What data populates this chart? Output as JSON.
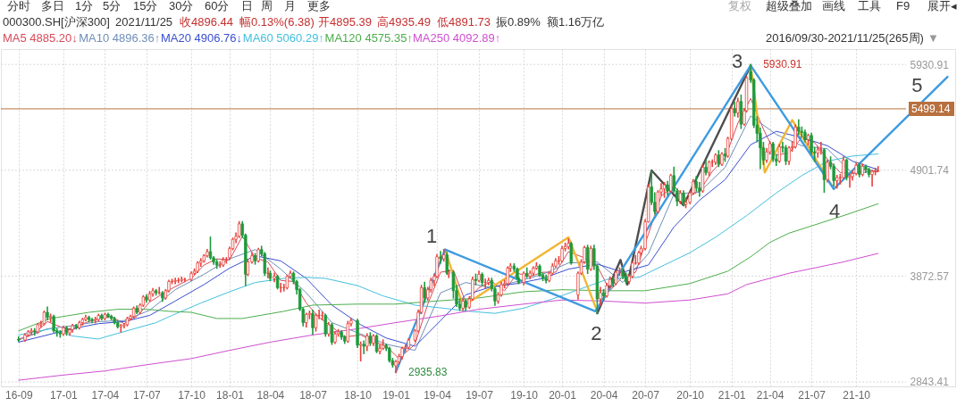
{
  "chart_data": {
    "type": "candlestick",
    "title": "000300.SH[沪深300]",
    "annotations": [
      "分时",
      "多日",
      "1分",
      "5分",
      "15分",
      "30分",
      "60分",
      "日",
      "周",
      "月",
      "更多",
      "复权",
      "超级叠加",
      "画线",
      "工具",
      "F9",
      "展开",
      "◂",
      "2021/11/25",
      "收4896.44",
      "幅0.13%(6.38)",
      "开4895.39",
      "高4935.49",
      "低4891.73",
      "振0.89%",
      "额1.16万亿",
      "2016/09/30-2021/11/25(265周)",
      "▼",
      {
        "text": "1",
        "x": "2019-04-22",
        "y": 4130
      },
      {
        "text": "2",
        "x": "2020-03-16",
        "y": 3530
      },
      {
        "text": "3",
        "x": "2021-02-19",
        "y": 5920
      },
      {
        "text": "4",
        "x": "2021-08-20",
        "y": 4720
      },
      {
        "text": "5",
        "x": "2022-04-26",
        "y": 5810
      },
      {
        "text": "5930.91",
        "x": "2021-02-19",
        "y": 5930.91
      },
      {
        "text": "2935.83",
        "x": "2019-01-04",
        "y": 2935.83
      }
    ],
    "x": [
      "2016-09-30",
      "2016-10-14",
      "2016-10-21",
      "2016-10-28",
      "2016-11-04",
      "2016-11-11",
      "2016-11-18",
      "2016-11-25",
      "2016-12-02",
      "2016-12-09",
      "2016-12-16",
      "2016-12-23",
      "2016-12-30",
      "2017-01-06",
      "2017-01-13",
      "2017-01-20",
      "2017-01-26",
      "2017-02-03",
      "2017-02-10",
      "2017-02-17",
      "2017-02-24",
      "2017-03-03",
      "2017-03-10",
      "2017-03-17",
      "2017-03-24",
      "2017-03-31",
      "2017-04-07",
      "2017-04-14",
      "2017-04-21",
      "2017-04-28",
      "2017-05-05",
      "2017-05-12",
      "2017-05-19",
      "2017-05-26",
      "2017-06-02",
      "2017-06-09",
      "2017-06-16",
      "2017-06-23",
      "2017-06-30",
      "2017-07-07",
      "2017-07-14",
      "2017-07-21",
      "2017-07-28",
      "2017-08-04",
      "2017-08-11",
      "2017-08-18",
      "2017-08-25",
      "2017-09-01",
      "2017-09-08",
      "2017-09-15",
      "2017-09-22",
      "2017-09-29",
      "2017-10-13",
      "2017-10-20",
      "2017-10-27",
      "2017-11-03",
      "2017-11-10",
      "2017-11-17",
      "2017-11-24",
      "2017-12-01",
      "2017-12-08",
      "2017-12-15",
      "2017-12-22",
      "2017-12-29",
      "2018-01-05",
      "2018-01-12",
      "2018-01-19",
      "2018-01-26",
      "2018-02-02",
      "2018-02-09",
      "2018-02-14",
      "2018-02-23",
      "2018-03-02",
      "2018-03-09",
      "2018-03-16",
      "2018-03-23",
      "2018-03-30",
      "2018-04-04",
      "2018-04-13",
      "2018-04-20",
      "2018-04-27",
      "2018-05-04",
      "2018-05-11",
      "2018-05-18",
      "2018-05-25",
      "2018-06-01",
      "2018-06-08",
      "2018-06-15",
      "2018-06-22",
      "2018-06-29",
      "2018-07-06",
      "2018-07-13",
      "2018-07-20",
      "2018-07-27",
      "2018-08-03",
      "2018-08-10",
      "2018-08-17",
      "2018-08-24",
      "2018-08-31",
      "2018-09-07",
      "2018-09-14",
      "2018-09-21",
      "2018-09-28",
      "2018-10-12",
      "2018-10-19",
      "2018-10-26",
      "2018-11-02",
      "2018-11-09",
      "2018-11-16",
      "2018-11-23",
      "2018-11-30",
      "2018-12-07",
      "2018-12-14",
      "2018-12-21",
      "2018-12-28",
      "2019-01-04",
      "2019-01-11",
      "2019-01-18",
      "2019-01-25",
      "2019-02-01",
      "2019-02-15",
      "2019-02-22",
      "2019-03-01",
      "2019-03-08",
      "2019-03-15",
      "2019-03-22",
      "2019-03-29",
      "2019-04-04",
      "2019-04-12",
      "2019-04-19",
      "2019-04-26",
      "2019-04-30",
      "2019-05-10",
      "2019-05-17",
      "2019-05-24",
      "2019-05-31",
      "2019-06-06",
      "2019-06-14",
      "2019-06-21",
      "2019-06-28",
      "2019-07-05",
      "2019-07-12",
      "2019-07-19",
      "2019-07-26",
      "2019-08-02",
      "2019-08-09",
      "2019-08-16",
      "2019-08-23",
      "2019-08-30",
      "2019-09-06",
      "2019-09-12",
      "2019-09-20",
      "2019-09-27",
      "2019-09-30",
      "2019-10-11",
      "2019-10-18",
      "2019-10-25",
      "2019-11-01",
      "2019-11-08",
      "2019-11-15",
      "2019-11-22",
      "2019-11-29",
      "2019-12-06",
      "2019-12-13",
      "2019-12-20",
      "2019-12-27",
      "2020-01-03",
      "2020-01-10",
      "2020-01-17",
      "2020-01-23",
      "2020-02-07",
      "2020-02-14",
      "2020-02-21",
      "2020-02-28",
      "2020-03-06",
      "2020-03-13",
      "2020-03-20",
      "2020-03-27",
      "2020-04-03",
      "2020-04-10",
      "2020-04-17",
      "2020-04-24",
      "2020-04-30",
      "2020-05-08",
      "2020-05-15",
      "2020-05-22",
      "2020-05-29",
      "2020-06-05",
      "2020-06-12",
      "2020-06-19",
      "2020-06-24",
      "2020-07-03",
      "2020-07-10",
      "2020-07-17",
      "2020-07-24",
      "2020-07-31",
      "2020-08-07",
      "2020-08-14",
      "2020-08-21",
      "2020-08-28",
      "2020-09-04",
      "2020-09-11",
      "2020-09-18",
      "2020-09-25",
      "2020-09-30",
      "2020-10-09",
      "2020-10-16",
      "2020-10-23",
      "2020-10-30",
      "2020-11-06",
      "2020-11-13",
      "2020-11-20",
      "2020-11-27",
      "2020-12-04",
      "2020-12-11",
      "2020-12-18",
      "2020-12-25",
      "2020-12-31",
      "2021-01-08",
      "2021-01-15",
      "2021-01-22",
      "2021-01-29",
      "2021-02-05",
      "2021-02-10",
      "2021-02-19",
      "2021-02-26",
      "2021-03-05",
      "2021-03-12",
      "2021-03-19",
      "2021-03-26",
      "2021-04-02",
      "2021-04-09",
      "2021-04-16",
      "2021-04-23",
      "2021-04-30",
      "2021-05-07",
      "2021-05-14",
      "2021-05-21",
      "2021-05-28",
      "2021-06-04",
      "2021-06-11",
      "2021-06-18",
      "2021-06-25",
      "2021-07-02",
      "2021-07-09",
      "2021-07-16",
      "2021-07-23",
      "2021-07-30",
      "2021-08-06",
      "2021-08-13",
      "2021-08-20",
      "2021-08-27",
      "2021-09-03",
      "2021-09-10",
      "2021-09-17",
      "2021-09-24",
      "2021-09-30",
      "2021-10-08",
      "2021-10-15",
      "2021-10-22",
      "2021-10-29",
      "2021-11-05",
      "2021-11-12",
      "2021-11-19",
      "2021-11-25"
    ],
    "ohlc": [
      [
        3260,
        3280,
        3240,
        3250
      ],
      [
        3250,
        3310,
        3240,
        3300
      ],
      [
        3300,
        3340,
        3290,
        3330
      ],
      [
        3330,
        3360,
        3310,
        3340
      ],
      [
        3340,
        3360,
        3300,
        3330
      ],
      [
        3330,
        3410,
        3320,
        3400
      ],
      [
        3400,
        3430,
        3380,
        3410
      ],
      [
        3410,
        3530,
        3400,
        3520
      ],
      [
        3520,
        3570,
        3450,
        3470
      ],
      [
        3470,
        3500,
        3430,
        3480
      ],
      [
        3480,
        3490,
        3330,
        3340
      ],
      [
        3340,
        3360,
        3290,
        3320
      ],
      [
        3320,
        3340,
        3280,
        3310
      ],
      [
        3310,
        3380,
        3300,
        3370
      ],
      [
        3370,
        3380,
        3300,
        3320
      ],
      [
        3320,
        3360,
        3300,
        3350
      ],
      [
        3350,
        3400,
        3330,
        3390
      ],
      [
        3390,
        3400,
        3360,
        3370
      ],
      [
        3370,
        3430,
        3360,
        3420
      ],
      [
        3420,
        3460,
        3400,
        3450
      ],
      [
        3450,
        3490,
        3440,
        3470
      ],
      [
        3470,
        3480,
        3430,
        3450
      ],
      [
        3450,
        3460,
        3420,
        3440
      ],
      [
        3440,
        3470,
        3420,
        3450
      ],
      [
        3450,
        3500,
        3440,
        3490
      ],
      [
        3490,
        3500,
        3450,
        3460
      ],
      [
        3460,
        3510,
        3450,
        3500
      ],
      [
        3500,
        3510,
        3470,
        3480
      ],
      [
        3480,
        3490,
        3450,
        3460
      ],
      [
        3460,
        3470,
        3410,
        3420
      ],
      [
        3420,
        3430,
        3370,
        3380
      ],
      [
        3380,
        3400,
        3330,
        3390
      ],
      [
        3390,
        3410,
        3370,
        3400
      ],
      [
        3400,
        3470,
        3390,
        3460
      ],
      [
        3460,
        3490,
        3450,
        3480
      ],
      [
        3480,
        3570,
        3470,
        3560
      ],
      [
        3560,
        3580,
        3510,
        3520
      ],
      [
        3520,
        3600,
        3510,
        3590
      ],
      [
        3590,
        3680,
        3580,
        3670
      ],
      [
        3670,
        3690,
        3620,
        3640
      ],
      [
        3640,
        3720,
        3630,
        3700
      ],
      [
        3700,
        3750,
        3680,
        3730
      ],
      [
        3730,
        3740,
        3690,
        3710
      ],
      [
        3710,
        3760,
        3700,
        3710
      ],
      [
        3710,
        3720,
        3630,
        3660
      ],
      [
        3660,
        3740,
        3650,
        3730
      ],
      [
        3730,
        3830,
        3720,
        3820
      ],
      [
        3820,
        3840,
        3800,
        3820
      ],
      [
        3820,
        3850,
        3800,
        3830
      ],
      [
        3830,
        3850,
        3810,
        3830
      ],
      [
        3830,
        3860,
        3820,
        3840
      ],
      [
        3840,
        3850,
        3820,
        3840
      ],
      [
        3840,
        3910,
        3830,
        3900
      ],
      [
        3900,
        3940,
        3890,
        3920
      ],
      [
        3920,
        4010,
        3910,
        4000
      ],
      [
        4000,
        4040,
        3970,
        4020
      ],
      [
        4020,
        4080,
        4010,
        4070
      ],
      [
        4070,
        4130,
        4060,
        4110
      ],
      [
        4110,
        4250,
        4040,
        4050
      ],
      [
        4050,
        4060,
        3990,
        4010
      ],
      [
        4010,
        4030,
        3950,
        3980
      ],
      [
        3980,
        4010,
        3960,
        3980
      ],
      [
        3980,
        4050,
        3970,
        4030
      ],
      [
        4030,
        4050,
        4000,
        4030
      ],
      [
        4050,
        4150,
        4040,
        4140
      ],
      [
        4140,
        4240,
        4130,
        4230
      ],
      [
        4230,
        4290,
        4200,
        4260
      ],
      [
        4260,
        4400,
        4250,
        4380
      ],
      [
        4380,
        4400,
        4250,
        4270
      ],
      [
        4270,
        4280,
        3780,
        3890
      ],
      [
        3890,
        4030,
        3880,
        4010
      ],
      [
        4010,
        4100,
        4000,
        4070
      ],
      [
        4070,
        4090,
        3990,
        4020
      ],
      [
        4020,
        4140,
        4010,
        4130
      ],
      [
        4130,
        4160,
        4070,
        4090
      ],
      [
        4090,
        4100,
        3880,
        3900
      ],
      [
        3900,
        3950,
        3860,
        3900
      ],
      [
        3900,
        3920,
        3830,
        3850
      ],
      [
        3850,
        3900,
        3820,
        3870
      ],
      [
        3870,
        3880,
        3750,
        3760
      ],
      [
        3760,
        3800,
        3720,
        3760
      ],
      [
        3760,
        3790,
        3730,
        3760
      ],
      [
        3760,
        3880,
        3750,
        3870
      ],
      [
        3870,
        3920,
        3860,
        3900
      ],
      [
        3900,
        3910,
        3800,
        3820
      ],
      [
        3820,
        3830,
        3700,
        3740
      ],
      [
        3740,
        3750,
        3540,
        3550
      ],
      [
        3550,
        3560,
        3390,
        3420
      ],
      [
        3420,
        3510,
        3380,
        3500
      ],
      [
        3500,
        3530,
        3460,
        3510
      ],
      [
        3510,
        3540,
        3310,
        3370
      ],
      [
        3370,
        3500,
        3340,
        3490
      ],
      [
        3490,
        3540,
        3460,
        3490
      ],
      [
        3490,
        3520,
        3450,
        3490
      ],
      [
        3490,
        3500,
        3290,
        3310
      ],
      [
        3310,
        3420,
        3290,
        3400
      ],
      [
        3400,
        3410,
        3210,
        3230
      ],
      [
        3230,
        3330,
        3220,
        3310
      ],
      [
        3310,
        3350,
        3290,
        3330
      ],
      [
        3330,
        3340,
        3260,
        3280
      ],
      [
        3280,
        3290,
        3220,
        3240
      ],
      [
        3240,
        3430,
        3230,
        3410
      ],
      [
        3410,
        3460,
        3390,
        3440
      ],
      [
        3440,
        3450,
        3180,
        3200
      ],
      [
        3200,
        3230,
        3050,
        3210
      ],
      [
        3210,
        3240,
        3120,
        3190
      ],
      [
        3190,
        3310,
        3150,
        3290
      ],
      [
        3290,
        3320,
        3200,
        3220
      ],
      [
        3220,
        3300,
        3200,
        3290
      ],
      [
        3290,
        3300,
        3130,
        3140
      ],
      [
        3140,
        3200,
        3120,
        3170
      ],
      [
        3170,
        3250,
        3160,
        3200
      ],
      [
        3200,
        3210,
        3150,
        3170
      ],
      [
        3170,
        3180,
        3040,
        3050
      ],
      [
        3050,
        3070,
        2990,
        3010
      ],
      [
        3000,
        3050,
        2935.83,
        3040
      ],
      [
        3040,
        3110,
        3020,
        3090
      ],
      [
        3090,
        3180,
        3070,
        3170
      ],
      [
        3170,
        3200,
        3140,
        3180
      ],
      [
        3180,
        3260,
        3170,
        3250
      ],
      [
        3250,
        3350,
        3240,
        3340
      ],
      [
        3340,
        3540,
        3330,
        3520
      ],
      [
        3520,
        3780,
        3510,
        3760
      ],
      [
        3760,
        3810,
        3620,
        3660
      ],
      [
        3660,
        3760,
        3640,
        3740
      ],
      [
        3740,
        3850,
        3720,
        3830
      ],
      [
        3830,
        3890,
        3780,
        3870
      ],
      [
        3870,
        4080,
        3860,
        4060
      ],
      [
        4060,
        4110,
        4000,
        4040
      ],
      [
        4040,
        4130,
        4020,
        4080
      ],
      [
        4080,
        4100,
        3890,
        3900
      ],
      [
        3900,
        3930,
        3860,
        3910
      ],
      [
        3910,
        3920,
        3660,
        3730
      ],
      [
        3730,
        3780,
        3580,
        3600
      ],
      [
        3600,
        3650,
        3540,
        3560
      ],
      [
        3560,
        3650,
        3540,
        3630
      ],
      [
        3630,
        3640,
        3540,
        3570
      ],
      [
        3570,
        3670,
        3560,
        3650
      ],
      [
        3650,
        3860,
        3640,
        3840
      ],
      [
        3840,
        3890,
        3790,
        3830
      ],
      [
        3830,
        3920,
        3820,
        3890
      ],
      [
        3890,
        3900,
        3780,
        3810
      ],
      [
        3810,
        3840,
        3760,
        3810
      ],
      [
        3810,
        3850,
        3790,
        3830
      ],
      [
        3830,
        3850,
        3730,
        3750
      ],
      [
        3750,
        3760,
        3590,
        3630
      ],
      [
        3630,
        3710,
        3610,
        3690
      ],
      [
        3690,
        3810,
        3680,
        3790
      ],
      [
        3790,
        3830,
        3760,
        3800
      ],
      [
        3800,
        3960,
        3790,
        3950
      ],
      [
        3950,
        3990,
        3920,
        3970
      ],
      [
        3970,
        3990,
        3920,
        3940
      ],
      [
        3940,
        3950,
        3840,
        3850
      ],
      [
        3850,
        3860,
        3800,
        3810
      ],
      [
        3810,
        3910,
        3790,
        3900
      ],
      [
        3900,
        3950,
        3860,
        3870
      ],
      [
        3870,
        3920,
        3850,
        3900
      ],
      [
        3900,
        3960,
        3880,
        3950
      ],
      [
        3950,
        4000,
        3940,
        3970
      ],
      [
        3970,
        3980,
        3870,
        3880
      ],
      [
        3880,
        3900,
        3830,
        3850
      ],
      [
        3850,
        3880,
        3810,
        3830
      ],
      [
        3830,
        3910,
        3820,
        3900
      ],
      [
        3900,
        3990,
        3890,
        3970
      ],
      [
        3970,
        4040,
        3960,
        4020
      ],
      [
        4020,
        4060,
        3990,
        4020
      ],
      [
        4020,
        4160,
        4010,
        4140
      ],
      [
        4140,
        4190,
        4120,
        4160
      ],
      [
        4160,
        4230,
        4140,
        4190
      ],
      [
        4190,
        4200,
        3990,
        4000
      ],
      [
        3690,
        3910,
        3650,
        3900
      ],
      [
        3900,
        4030,
        3890,
        4010
      ],
      [
        4010,
        4160,
        4000,
        4150
      ],
      [
        4150,
        4170,
        3900,
        3940
      ],
      [
        3940,
        4160,
        3930,
        4140
      ],
      [
        4140,
        4170,
        3940,
        3970
      ],
      [
        3970,
        3980,
        3510,
        3650
      ],
      [
        3650,
        3760,
        3590,
        3710
      ],
      [
        3710,
        3740,
        3640,
        3680
      ],
      [
        3680,
        3800,
        3670,
        3780
      ],
      [
        3780,
        3860,
        3760,
        3840
      ],
      [
        3840,
        3860,
        3770,
        3800
      ],
      [
        3800,
        3920,
        3790,
        3910
      ],
      [
        3910,
        3950,
        3880,
        3910
      ],
      [
        3910,
        3940,
        3850,
        3870
      ],
      [
        3870,
        3900,
        3800,
        3820
      ],
      [
        3820,
        3880,
        3800,
        3870
      ],
      [
        3870,
        4010,
        3860,
        4000
      ],
      [
        4000,
        4070,
        3990,
        4000
      ],
      [
        4000,
        4110,
        3990,
        4100
      ],
      [
        4100,
        4160,
        4080,
        4140
      ],
      [
        4140,
        4420,
        4130,
        4400
      ],
      [
        4400,
        4760,
        4400,
        4740
      ],
      [
        4740,
        4890,
        4570,
        4590
      ],
      [
        4590,
        4680,
        4480,
        4500
      ],
      [
        4500,
        4700,
        4490,
        4690
      ],
      [
        4690,
        4770,
        4660,
        4720
      ],
      [
        4720,
        4780,
        4640,
        4760
      ],
      [
        4760,
        4790,
        4660,
        4700
      ],
      [
        4700,
        4860,
        4690,
        4850
      ],
      [
        4850,
        4930,
        4690,
        4700
      ],
      [
        4700,
        4720,
        4560,
        4600
      ],
      [
        4600,
        4700,
        4580,
        4680
      ],
      [
        4680,
        4700,
        4560,
        4570
      ],
      [
        4570,
        4620,
        4540,
        4590
      ],
      [
        4590,
        4700,
        4580,
        4680
      ],
      [
        4680,
        4810,
        4670,
        4790
      ],
      [
        4790,
        4840,
        4700,
        4730
      ],
      [
        4730,
        4780,
        4650,
        4700
      ],
      [
        4700,
        4950,
        4690,
        4930
      ],
      [
        4930,
        5000,
        4860,
        4880
      ],
      [
        4880,
        4990,
        4850,
        4980
      ],
      [
        4980,
        5000,
        4940,
        4980
      ],
      [
        4980,
        5060,
        4960,
        5050
      ],
      [
        5050,
        5090,
        4940,
        4960
      ],
      [
        4960,
        5070,
        4950,
        5060
      ],
      [
        5060,
        5110,
        4990,
        5040
      ],
      [
        5040,
        5220,
        5030,
        5210
      ],
      [
        5210,
        5520,
        5200,
        5500
      ],
      [
        5500,
        5560,
        5430,
        5460
      ],
      [
        5460,
        5600,
        5420,
        5570
      ],
      [
        5570,
        5630,
        5310,
        5350
      ],
      [
        5350,
        5500,
        5340,
        5480
      ],
      [
        5480,
        5810,
        5470,
        5800
      ],
      [
        5860,
        5930.91,
        5760,
        5780
      ],
      [
        5780,
        5790,
        5320,
        5340
      ],
      [
        5340,
        5420,
        5180,
        5260
      ],
      [
        5260,
        5310,
        4920,
        5120
      ],
      [
        5120,
        5170,
        4960,
        5000
      ],
      [
        5000,
        5110,
        4980,
        5080
      ],
      [
        5080,
        5180,
        5060,
        5160
      ],
      [
        5160,
        5170,
        4990,
        5010
      ],
      [
        5010,
        5050,
        4950,
        4990
      ],
      [
        4990,
        5150,
        4980,
        5130
      ],
      [
        5130,
        5170,
        5080,
        5120
      ],
      [
        5120,
        5140,
        4960,
        4990
      ],
      [
        4990,
        5130,
        4960,
        5120
      ],
      [
        5120,
        5180,
        5090,
        5130
      ],
      [
        5130,
        5340,
        5120,
        5320
      ],
      [
        5320,
        5390,
        5250,
        5280
      ],
      [
        5280,
        5320,
        5230,
        5270
      ],
      [
        5270,
        5290,
        5180,
        5200
      ],
      [
        5200,
        5250,
        5150,
        5240
      ],
      [
        5240,
        5260,
        5060,
        5080
      ],
      [
        5080,
        5120,
        4990,
        5070
      ],
      [
        5070,
        5130,
        5030,
        5100
      ],
      [
        5100,
        5170,
        5060,
        5100
      ],
      [
        5100,
        5110,
        4690,
        4810
      ],
      [
        4810,
        5000,
        4790,
        4980
      ],
      [
        4980,
        5030,
        4920,
        4940
      ],
      [
        4940,
        4960,
        4750,
        4800
      ],
      [
        4800,
        4850,
        4730,
        4830
      ],
      [
        4830,
        4860,
        4770,
        4830
      ],
      [
        4830,
        5030,
        4820,
        5000
      ],
      [
        5000,
        5010,
        4810,
        4830
      ],
      [
        4830,
        4860,
        4740,
        4840
      ],
      [
        4840,
        4890,
        4810,
        4870
      ],
      [
        4870,
        4970,
        4860,
        4950
      ],
      [
        4950,
        4970,
        4840,
        4860
      ],
      [
        4860,
        4960,
        4850,
        4940
      ],
      [
        4940,
        4950,
        4880,
        4910
      ],
      [
        4910,
        4920,
        4840,
        4860
      ],
      [
        4860,
        4900,
        4750,
        4890
      ],
      [
        4890,
        4920,
        4860,
        4890
      ],
      [
        4895.39,
        4935.49,
        4891.73,
        4896.44
      ]
    ],
    "series": [
      {
        "type": "line",
        "name": "MA5 4885.20↓",
        "color": "#d94a5a",
        "x": [
          "2016-09-30",
          "2016-11-04",
          "2016-12-02",
          "2016-12-30",
          "2017-01-26",
          "2017-02-24",
          "2017-03-24",
          "2017-04-21",
          "2017-05-19",
          "2017-06-16",
          "2017-07-14",
          "2017-08-11",
          "2017-09-08",
          "2017-10-13",
          "2017-11-10",
          "2017-12-08",
          "2018-01-05",
          "2018-02-02",
          "2018-03-02",
          "2018-03-30",
          "2018-04-27",
          "2018-05-25",
          "2018-06-22",
          "2018-07-20",
          "2018-08-17",
          "2018-09-14",
          "2018-10-19",
          "2018-11-16",
          "2018-12-14",
          "2019-01-11",
          "2019-02-15",
          "2019-03-15",
          "2019-04-12",
          "2019-05-10",
          "2019-06-06",
          "2019-07-05",
          "2019-08-02",
          "2019-08-30",
          "2019-09-27",
          "2019-10-25",
          "2019-11-22",
          "2019-12-20",
          "2020-01-17",
          "2020-02-21",
          "2020-03-20",
          "2020-04-17",
          "2020-05-15",
          "2020-06-12",
          "2020-07-10",
          "2020-08-07",
          "2020-09-04",
          "2020-09-30",
          "2020-10-30",
          "2020-11-27",
          "2020-12-25",
          "2021-01-22",
          "2021-02-19",
          "2021-03-19",
          "2021-04-16",
          "2021-05-14",
          "2021-06-11",
          "2021-07-09",
          "2021-08-06",
          "2021-09-03",
          "2021-09-30",
          "2021-10-29",
          "2021-11-25"
        ],
        "values": [
          3260,
          3310,
          3430,
          3380,
          3350,
          3420,
          3460,
          3480,
          3410,
          3480,
          3620,
          3700,
          3770,
          3850,
          3980,
          4040,
          4030,
          4260,
          4050,
          4010,
          3830,
          3820,
          3610,
          3470,
          3380,
          3280,
          3300,
          3240,
          3190,
          3070,
          3210,
          3600,
          3910,
          3930,
          3620,
          3760,
          3820,
          3730,
          3900,
          3870,
          3910,
          3910,
          4110,
          4050,
          3970,
          3730,
          3870,
          3910,
          4280,
          4650,
          4750,
          4630,
          4700,
          4890,
          5020,
          5360,
          5600,
          5300,
          5050,
          5070,
          5220,
          5170,
          5010,
          4880,
          4870,
          4910,
          4885.2
        ]
      },
      {
        "type": "line",
        "name": "MA10 4896.36↑",
        "color": "#6f8fb8",
        "x": [
          "2016-09-30",
          "2016-12-02",
          "2017-01-26",
          "2017-03-24",
          "2017-05-19",
          "2017-07-14",
          "2017-09-08",
          "2017-11-10",
          "2018-01-05",
          "2018-03-02",
          "2018-04-27",
          "2018-06-22",
          "2018-08-17",
          "2018-10-19",
          "2018-12-14",
          "2019-02-15",
          "2019-04-12",
          "2019-06-06",
          "2019-08-02",
          "2019-09-27",
          "2019-11-22",
          "2020-01-17",
          "2020-03-20",
          "2020-05-15",
          "2020-07-10",
          "2020-09-04",
          "2020-10-30",
          "2020-12-25",
          "2021-02-19",
          "2021-04-16",
          "2021-06-11",
          "2021-08-06",
          "2021-09-30",
          "2021-11-25"
        ],
        "values": [
          3250,
          3360,
          3390,
          3430,
          3440,
          3540,
          3740,
          3890,
          4040,
          4130,
          3940,
          3710,
          3420,
          3310,
          3210,
          3150,
          3710,
          3810,
          3760,
          3820,
          3890,
          4000,
          4010,
          3810,
          4090,
          4670,
          4690,
          4930,
          5430,
          5250,
          5140,
          5110,
          4870,
          4896.36
        ]
      },
      {
        "type": "line",
        "name": "MA20 4906.76↓",
        "color": "#3a4fd0",
        "x": [
          "2016-09-30",
          "2016-12-02",
          "2017-01-26",
          "2017-03-24",
          "2017-05-19",
          "2017-07-14",
          "2017-09-08",
          "2017-11-10",
          "2018-01-05",
          "2018-03-02",
          "2018-04-27",
          "2018-06-22",
          "2018-08-17",
          "2018-10-19",
          "2018-12-14",
          "2019-02-15",
          "2019-04-12",
          "2019-06-06",
          "2019-08-02",
          "2019-09-27",
          "2019-11-22",
          "2020-01-17",
          "2020-03-20",
          "2020-05-15",
          "2020-07-10",
          "2020-09-04",
          "2020-10-30",
          "2020-12-25",
          "2021-02-19",
          "2021-04-16",
          "2021-06-11",
          "2021-08-06",
          "2021-09-30",
          "2021-11-25"
        ],
        "values": [
          3230,
          3300,
          3360,
          3410,
          3430,
          3490,
          3630,
          3790,
          3950,
          4070,
          4020,
          3850,
          3590,
          3400,
          3270,
          3190,
          3440,
          3690,
          3770,
          3800,
          3850,
          3940,
          3990,
          3910,
          3980,
          4350,
          4610,
          4810,
          5150,
          5280,
          5220,
          5140,
          4990,
          4906.76
        ]
      },
      {
        "type": "line",
        "name": "MA60 5060.29↑",
        "color": "#44c0dd",
        "x": [
          "2016-09-30",
          "2016-12-09",
          "2017-01-26",
          "2017-03-24",
          "2017-04-07",
          "2017-06-02",
          "2017-07-28",
          "2017-09-01",
          "2017-11-03",
          "2018-01-05",
          "2018-03-02",
          "2018-05-04",
          "2018-06-22",
          "2018-08-03",
          "2018-10-12",
          "2018-12-07",
          "2019-02-15",
          "2019-04-19",
          "2019-06-14",
          "2019-08-09",
          "2019-10-11",
          "2019-12-13",
          "2020-02-14",
          "2020-04-17",
          "2020-06-19",
          "2020-08-14",
          "2020-10-09",
          "2020-12-04",
          "2021-02-10",
          "2021-04-16",
          "2021-06-11",
          "2021-08-06",
          "2021-09-30",
          "2021-11-25"
        ],
        "values": [
          3300,
          3360,
          3290,
          3260,
          3280,
          3350,
          3420,
          3490,
          3610,
          3720,
          3810,
          3850,
          3860,
          3850,
          3780,
          3680,
          3590,
          3560,
          3530,
          3510,
          3560,
          3650,
          3750,
          3850,
          3860,
          3980,
          4100,
          4250,
          4460,
          4680,
          4850,
          4990,
          5040,
          5060.29
        ]
      },
      {
        "type": "line",
        "name": "MA120 4575.35↑",
        "color": "#4cae4c",
        "x": [
          "2016-09-30",
          "2016-12-09",
          "2017-03-03",
          "2017-05-05",
          "2017-07-07",
          "2017-08-25",
          "2017-10-13",
          "2017-12-08",
          "2018-02-02",
          "2018-05-04",
          "2018-07-06",
          "2018-10-12",
          "2019-01-04",
          "2019-04-04",
          "2019-07-05",
          "2019-10-11",
          "2020-01-03",
          "2020-04-03",
          "2020-07-03",
          "2020-10-09",
          "2020-12-31",
          "2021-02-19",
          "2021-04-02",
          "2021-05-14",
          "2021-07-02",
          "2021-09-10",
          "2021-11-25"
        ],
        "values": [
          3340,
          3460,
          3520,
          3550,
          3550,
          3530,
          3520,
          3460,
          3460,
          3530,
          3590,
          3600,
          3600,
          3630,
          3660,
          3720,
          3740,
          3730,
          3730,
          3800,
          3920,
          4060,
          4200,
          4290,
          4360,
          4460,
          4575.35
        ]
      },
      {
        "type": "line",
        "name": "MA250 4092.89↑",
        "color": "#cf4fcf",
        "x": [
          "2016-09-30",
          "2017-01-06",
          "2017-04-07",
          "2017-07-07",
          "2017-10-13",
          "2018-01-05",
          "2018-04-04",
          "2018-07-06",
          "2018-10-12",
          "2019-01-04",
          "2019-04-04",
          "2019-07-05",
          "2019-10-11",
          "2020-01-03",
          "2020-04-03",
          "2020-07-03",
          "2020-10-09",
          "2020-12-31",
          "2021-02-10",
          "2021-05-14",
          "2021-09-10",
          "2021-11-25"
        ],
        "values": [
          2860,
          2910,
          2950,
          3010,
          3070,
          3150,
          3230,
          3300,
          3360,
          3420,
          3480,
          3550,
          3600,
          3640,
          3630,
          3610,
          3640,
          3700,
          3790,
          3900,
          4010,
          4092.89
        ]
      },
      {
        "type": "line",
        "color": "#f2b530",
        "x": [
          "2019-04-22",
          "2019-05-31",
          "2020-01-17",
          "2020-03-20"
        ],
        "values": [
          4130,
          3580,
          4250,
          3530
        ]
      },
      {
        "type": "line",
        "color": "#f2b530",
        "x": [
          "2021-02-19",
          "2021-03-22",
          "2021-05-21",
          "2021-08-20"
        ],
        "values": [
          5920,
          4880,
          5390,
          4720
        ]
      },
      {
        "type": "line",
        "color": "#4d4d4d",
        "x": [
          "2020-03-20",
          "2020-05-10",
          "2020-05-25",
          "2020-07-17",
          "2020-09-25",
          "2021-02-19"
        ],
        "values": [
          3510,
          4030,
          3790,
          4900,
          4560,
          5920
        ]
      },
      {
        "type": "line",
        "color": "#3d9be0",
        "x": [
          "2019-01-04",
          "2019-04-22",
          "2020-03-16",
          "2021-02-19",
          "2021-08-20",
          "2022-04-26"
        ],
        "values": [
          2940,
          4130,
          3530,
          5920,
          4720,
          5810
        ]
      }
    ],
    "ref_lines": [
      {
        "axis": "y",
        "value": 5499.14,
        "label": "5499.14",
        "color": "#b8703f"
      }
    ],
    "xlim": [
      "2016-09-01",
      "2022-05-03"
    ],
    "xticks": [
      {
        "value": "2016-09-30",
        "label": "16-09"
      },
      {
        "value": "2017-01-06",
        "label": "17-01"
      },
      {
        "value": "2017-04-07",
        "label": "17-04"
      },
      {
        "value": "2017-07-07",
        "label": "17-07"
      },
      {
        "value": "2017-10-13",
        "label": "17-10"
      },
      {
        "value": "2018-01-05",
        "label": "18-01"
      },
      {
        "value": "2018-04-04",
        "label": "18-04"
      },
      {
        "value": "2018-07-06",
        "label": "18-07"
      },
      {
        "value": "2018-10-12",
        "label": "18-10"
      },
      {
        "value": "2019-01-04",
        "label": "19-01"
      },
      {
        "value": "2019-04-04",
        "label": "19-04"
      },
      {
        "value": "2019-07-05",
        "label": "19-07"
      },
      {
        "value": "2019-10-11",
        "label": "19-10"
      },
      {
        "value": "2020-01-03",
        "label": "20-01"
      },
      {
        "value": "2020-04-03",
        "label": "20-04"
      },
      {
        "value": "2020-07-03",
        "label": "20-07"
      },
      {
        "value": "2020-10-09",
        "label": "20-10"
      },
      {
        "value": "2021-01-08",
        "label": "21-01"
      },
      {
        "value": "2021-04-02",
        "label": "21-04"
      },
      {
        "value": "2021-07-02",
        "label": "21-07"
      },
      {
        "value": "2021-10-08",
        "label": "21-10"
      }
    ],
    "ylim": [
      2800,
      6080
    ],
    "yticks": [
      2843.41,
      3872.57,
      4901.74,
      5930.91
    ],
    "grid": true,
    "legend": "top left"
  }
}
